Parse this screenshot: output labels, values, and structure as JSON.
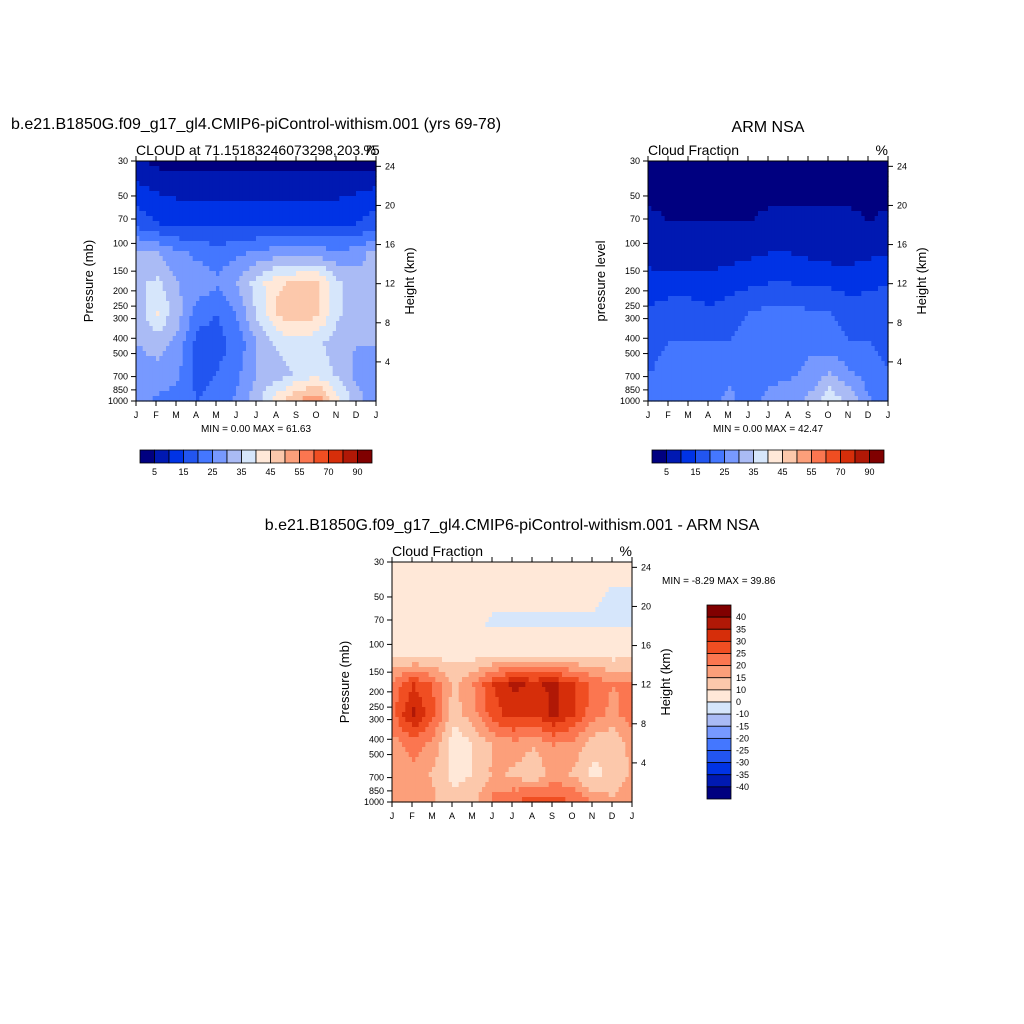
{
  "figure": {
    "titles": {
      "panel1": "b.e21.B1850G.f09_g17_gl4.CMIP6-piControl-withism.001 (yrs 69-78)",
      "panel2": "ARM NSA",
      "panel3": "b.e21.B1850G.f09_g17_gl4.CMIP6-piControl-withism.001 - ARM NSA"
    }
  },
  "chart_data": [
    {
      "id": "panel1",
      "type": "heatmap",
      "subtitle_left": "CLOUD at 71.15183246073298,203.75",
      "subtitle_right": "%",
      "ylabel": "Pressure (mb)",
      "ylabel_right": "Height (km)",
      "x_ticks": [
        "J",
        "F",
        "M",
        "A",
        "M",
        "J",
        "J",
        "A",
        "S",
        "O",
        "N",
        "D",
        "J"
      ],
      "y_ticks": [
        30,
        50,
        70,
        100,
        150,
        200,
        250,
        300,
        400,
        500,
        700,
        850,
        1000
      ],
      "height_ticks": [
        24,
        20,
        16,
        12,
        8,
        4
      ],
      "stats": {
        "min_label": "MIN =",
        "min": "0.00",
        "max_label": "MAX =",
        "max": "61.63"
      },
      "colorbar": {
        "orientation": "horizontal",
        "labels": [
          "5",
          "15",
          "25",
          "35",
          "45",
          "55",
          "70",
          "90"
        ],
        "colors": [
          "#000080",
          "#0019b2",
          "#0033e5",
          "#2255f0",
          "#4477ff",
          "#7799ff",
          "#aabbf5",
          "#d6e6fb",
          "#ffe8d8",
          "#fcc8ab",
          "#fc9f7a",
          "#fb7650",
          "#f04e22",
          "#d62e0a",
          "#b01806",
          "#800000"
        ]
      },
      "levels": [
        [
          6,
          4,
          3,
          3,
          3,
          3,
          3,
          3,
          3,
          3,
          3,
          3,
          3
        ],
        [
          12,
          10,
          9,
          9,
          9,
          9,
          9,
          9,
          9,
          9,
          9,
          10,
          12
        ],
        [
          18,
          15,
          14,
          14,
          14,
          14,
          14,
          14,
          14,
          14,
          14,
          15,
          18
        ],
        [
          32,
          30,
          26,
          24,
          22,
          24,
          26,
          28,
          28,
          28,
          26,
          28,
          32
        ],
        [
          34,
          36,
          30,
          28,
          26,
          30,
          38,
          44,
          46,
          46,
          36,
          32,
          34
        ],
        [
          32,
          40,
          32,
          22,
          20,
          26,
          36,
          46,
          48,
          46,
          36,
          32,
          32
        ],
        [
          30,
          32,
          28,
          18,
          18,
          22,
          30,
          36,
          38,
          36,
          32,
          30,
          30
        ],
        [
          28,
          28,
          26,
          18,
          20,
          24,
          30,
          32,
          36,
          38,
          34,
          28,
          28
        ],
        [
          26,
          24,
          22,
          20,
          22,
          26,
          34,
          44,
          52,
          55,
          42,
          32,
          26
        ]
      ]
    },
    {
      "id": "panel2",
      "type": "heatmap",
      "subtitle_left": "Cloud Fraction",
      "subtitle_right": "%",
      "ylabel": "pressure level",
      "ylabel_right": "Height (km)",
      "x_ticks": [
        "J",
        "F",
        "M",
        "A",
        "M",
        "J",
        "J",
        "A",
        "S",
        "O",
        "N",
        "D",
        "J"
      ],
      "y_ticks": [
        30,
        50,
        70,
        100,
        150,
        200,
        250,
        300,
        400,
        500,
        700,
        850,
        1000
      ],
      "height_ticks": [
        24,
        20,
        16,
        12,
        8,
        4
      ],
      "stats": {
        "min_label": "MIN =",
        "min": "0.00",
        "max_label": "MAX =",
        "max": "42.47"
      },
      "colorbar": {
        "orientation": "horizontal",
        "labels": [
          "5",
          "15",
          "25",
          "35",
          "45",
          "55",
          "70",
          "90"
        ],
        "colors": [
          "#000080",
          "#0019b2",
          "#0033e5",
          "#2255f0",
          "#4477ff",
          "#7799ff",
          "#aabbf5",
          "#d6e6fb",
          "#ffe8d8",
          "#fcc8ab",
          "#fc9f7a",
          "#fb7650",
          "#f04e22",
          "#d62e0a",
          "#b01806",
          "#800000"
        ]
      },
      "levels": [
        [
          3,
          3,
          3,
          3,
          3,
          3,
          3,
          3,
          3,
          3,
          3,
          3,
          3
        ],
        [
          4,
          4,
          4,
          4,
          4,
          4,
          4,
          4,
          4,
          4,
          4,
          4,
          4
        ],
        [
          6,
          5,
          5,
          5,
          5,
          5,
          6,
          6,
          6,
          6,
          6,
          5,
          6
        ],
        [
          8,
          7,
          7,
          7,
          8,
          9,
          10,
          10,
          9,
          8,
          8,
          9,
          10
        ],
        [
          12,
          12,
          12,
          12,
          13,
          14,
          15,
          15,
          14,
          14,
          13,
          14,
          15
        ],
        [
          16,
          18,
          18,
          16,
          18,
          20,
          22,
          22,
          21,
          20,
          18,
          18,
          18
        ],
        [
          18,
          20,
          20,
          20,
          20,
          22,
          24,
          24,
          24,
          22,
          20,
          20,
          18
        ],
        [
          20,
          22,
          20,
          22,
          24,
          22,
          24,
          24,
          26,
          30,
          26,
          22,
          20
        ],
        [
          22,
          24,
          22,
          24,
          26,
          24,
          26,
          28,
          32,
          40,
          34,
          26,
          22
        ]
      ]
    },
    {
      "id": "panel3",
      "type": "heatmap",
      "subtitle_left": "Cloud Fraction",
      "subtitle_right": "%",
      "ylabel": "Pressure (mb)",
      "ylabel_right": "Height (km)",
      "x_ticks": [
        "J",
        "F",
        "M",
        "A",
        "M",
        "J",
        "J",
        "A",
        "S",
        "O",
        "N",
        "D",
        "J"
      ],
      "y_ticks": [
        30,
        50,
        70,
        100,
        150,
        200,
        250,
        300,
        400,
        500,
        700,
        850,
        1000
      ],
      "height_ticks": [
        24,
        20,
        16,
        12,
        8,
        4
      ],
      "stats": {
        "min_label": "MIN =",
        "min": "-8.29",
        "max_label": "MAX =",
        "max": "39.86"
      },
      "colorbar": {
        "orientation": "vertical",
        "labels": [
          "40",
          "35",
          "30",
          "25",
          "20",
          "15",
          "10",
          "0",
          "-10",
          "-15",
          "-20",
          "-25",
          "-30",
          "-35",
          "-40"
        ],
        "colors": [
          "#000080",
          "#0019b2",
          "#0033e5",
          "#2255f0",
          "#4477ff",
          "#7799ff",
          "#aabbf5",
          "#d6e6fb",
          "#ffe8d8",
          "#fcc8ab",
          "#fc9f7a",
          "#fb7650",
          "#f04e22",
          "#d62e0a",
          "#b01806",
          "#800000"
        ]
      },
      "levels": [
        [
          2,
          2,
          2,
          2,
          2,
          2,
          2,
          2,
          2,
          2,
          2,
          2,
          2
        ],
        [
          2,
          2,
          2,
          2,
          2,
          2,
          2,
          1,
          2,
          2,
          1,
          -1,
          -1
        ],
        [
          1,
          2,
          1,
          2,
          2,
          -1,
          -1,
          -1,
          -1,
          -1,
          -1,
          -1,
          -1
        ],
        [
          8,
          8,
          8,
          8,
          8,
          8,
          8,
          8,
          8,
          8,
          8,
          8,
          8
        ],
        [
          22,
          30,
          24,
          14,
          20,
          30,
          36,
          34,
          36,
          30,
          24,
          20,
          22
        ],
        [
          24,
          36,
          26,
          12,
          18,
          28,
          32,
          30,
          36,
          30,
          22,
          18,
          24
        ],
        [
          18,
          22,
          18,
          6,
          10,
          16,
          18,
          16,
          20,
          18,
          12,
          10,
          18
        ],
        [
          16,
          18,
          14,
          8,
          10,
          16,
          14,
          10,
          18,
          14,
          8,
          12,
          16
        ],
        [
          18,
          20,
          16,
          12,
          14,
          22,
          26,
          30,
          28,
          26,
          20,
          16,
          18
        ]
      ]
    }
  ]
}
